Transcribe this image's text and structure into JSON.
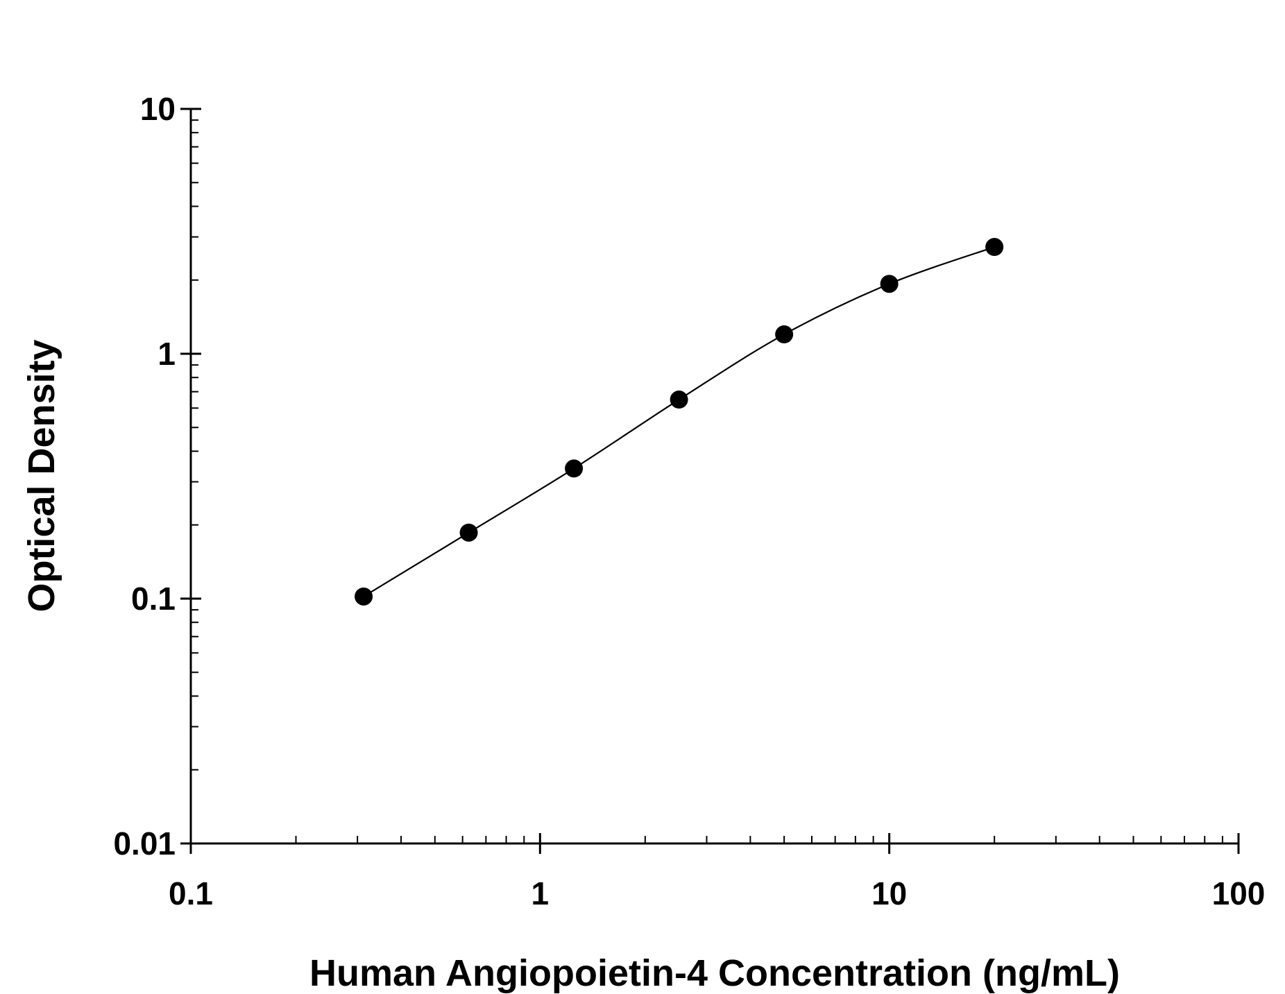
{
  "chart_data": {
    "type": "scatter",
    "xlabel": "Human Angiopoietin-4 Concentration (ng/mL)",
    "ylabel": "Optical Density",
    "x_scale": "log",
    "y_scale": "log",
    "xlim": [
      0.1,
      100
    ],
    "ylim": [
      0.01,
      10
    ],
    "x_ticks": [
      {
        "value": 0.1,
        "label": "0.1"
      },
      {
        "value": 1,
        "label": "1"
      },
      {
        "value": 10,
        "label": "10"
      },
      {
        "value": 100,
        "label": "100"
      }
    ],
    "y_ticks": [
      {
        "value": 0.01,
        "label": "0.01"
      },
      {
        "value": 0.1,
        "label": "0.1"
      },
      {
        "value": 1,
        "label": "1"
      },
      {
        "value": 10,
        "label": "10"
      }
    ],
    "grid": false,
    "series": [
      {
        "x": [
          0.3125,
          0.625,
          1.25,
          2.5,
          5,
          10,
          20
        ],
        "y": [
          0.102,
          0.186,
          0.34,
          0.65,
          1.2,
          1.93,
          2.73
        ],
        "fit_curve": true
      }
    ],
    "colors": {
      "marker": "#000000",
      "line": "#000000"
    }
  }
}
